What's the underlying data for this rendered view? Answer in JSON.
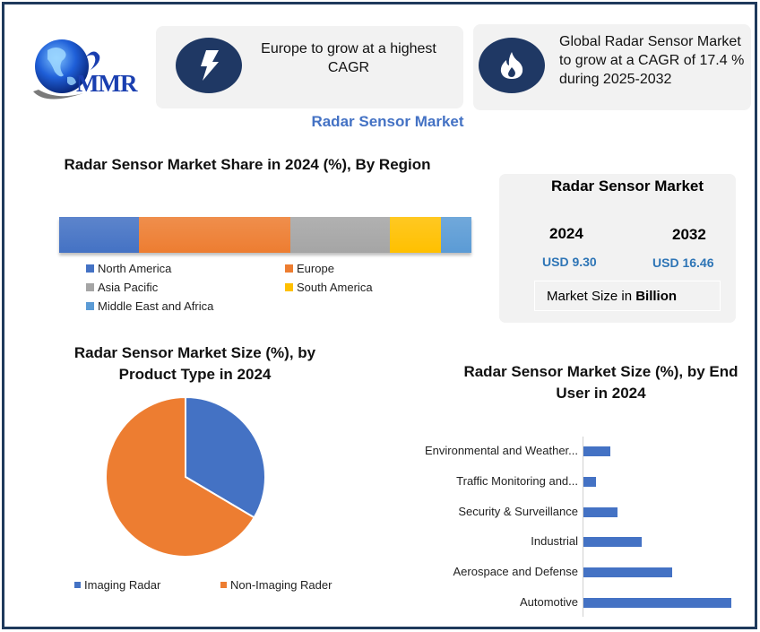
{
  "brand": {
    "logo_text": "MMR"
  },
  "kpis": [
    {
      "icon": "lightning-bolt-icon",
      "text": "Europe to grow at a highest CAGR"
    },
    {
      "icon": "flame-icon",
      "text": "Global Radar Sensor Market to grow at a CAGR of 17.4 % during 2025-2032"
    }
  ],
  "main_title": "Radar Sensor Market",
  "market_size": {
    "title": "Radar Sensor Market",
    "years": [
      {
        "year": "2024",
        "value": "USD 9.30"
      },
      {
        "year": "2032",
        "value": "USD 16.46"
      }
    ],
    "unit_prefix": "Market Size in ",
    "unit_bold": "Billion"
  },
  "colors": {
    "frame": "#1f3a5c",
    "icon_circle": "#1f3864",
    "accent_title": "#4472c4",
    "value_blue": "#2e75b6",
    "card_bg": "#f2f2f2"
  },
  "chart_data": [
    {
      "type": "bar",
      "orientation": "horizontal-stacked-100",
      "title": "Radar Sensor Market Share in 2024 (%), By Region",
      "categories": [
        "North America",
        "Europe",
        "Asia Pacific",
        "South America",
        "Middle East and Africa"
      ],
      "values": [
        19.3,
        36.7,
        24.3,
        12.4,
        7.3
      ],
      "colors": [
        "#4472c4",
        "#ed7d31",
        "#a5a5a5",
        "#ffc000",
        "#5b9bd5"
      ],
      "legend_position": "bottom",
      "grid": false
    },
    {
      "type": "pie",
      "title": "Radar Sensor Market Size (%), by Product Type in 2024",
      "categories": [
        "Imaging Radar",
        "Non-Imaging Rader"
      ],
      "values": [
        33.5,
        66.5
      ],
      "colors": [
        "#4472c4",
        "#ed7d31"
      ],
      "legend_position": "bottom"
    },
    {
      "type": "bar",
      "orientation": "horizontal",
      "title": "Radar Sensor Market Size (%), by End User in 2024",
      "categories": [
        "Environmental and Weather...",
        "Traffic Monitoring and...",
        "Security & Surveillance",
        "Industrial",
        "Aerospace and Defense",
        "Automotive"
      ],
      "values": [
        7.3,
        3.4,
        9.2,
        15.8,
        24.1,
        40.2
      ],
      "color": "#4472c4",
      "xlabel": "",
      "ylabel": "",
      "grid": false,
      "legend_position": "none"
    }
  ],
  "region_chart": {
    "title": "Radar Sensor Market Share in 2024 (%), By Region",
    "legend": [
      "North America",
      "Europe",
      "Asia Pacific",
      "South America",
      "Middle East and Africa"
    ]
  },
  "pie_chart": {
    "title": "Radar Sensor Market Size (%), by Product Type in 2024",
    "legend": [
      "Imaging Radar",
      "Non-Imaging Rader"
    ]
  },
  "end_user_chart": {
    "title": "Radar Sensor Market Size (%), by End User in 2024",
    "labels": [
      "Environmental and Weather...",
      "Traffic Monitoring and...",
      "Security & Surveillance",
      "Industrial",
      "Aerospace and Defense",
      "Automotive"
    ]
  }
}
